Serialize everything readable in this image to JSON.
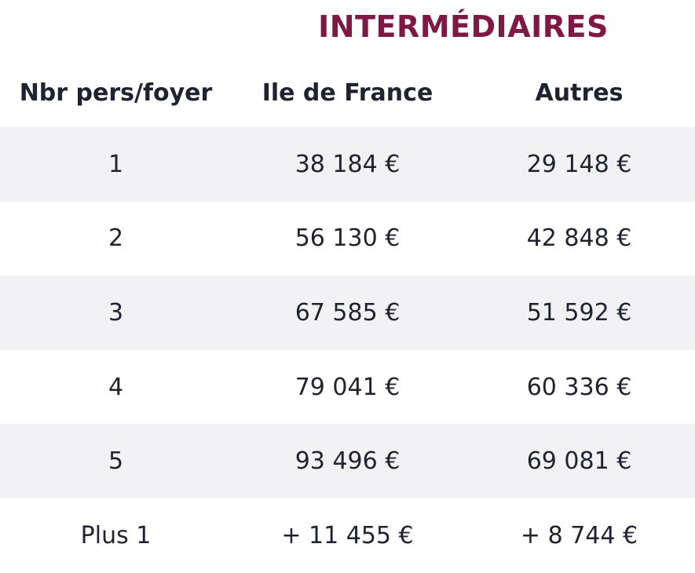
{
  "title": "INTERMÉDIAIRES",
  "columns": [
    "Nbr pers/foyer",
    "Ile de France",
    "Autres"
  ],
  "rows": [
    [
      "1",
      "38 184 €",
      "29 148 €"
    ],
    [
      "2",
      "56 130 €",
      "42 848 €"
    ],
    [
      "3",
      "67 585 €",
      "51 592 €"
    ],
    [
      "4",
      "79 041 €",
      "60 336 €"
    ],
    [
      "5",
      "93 496 €",
      "69 081 €"
    ],
    [
      "Plus 1",
      "+ 11 455 €",
      "+ 8 744 €"
    ]
  ],
  "colors": {
    "title": "#7f1845",
    "text": "#1f2230",
    "shaded_row": "#f2f2f4"
  }
}
